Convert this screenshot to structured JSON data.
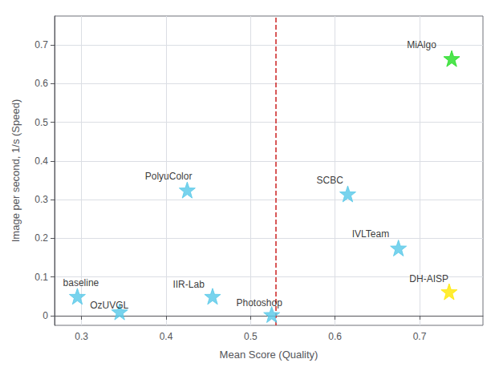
{
  "chart_data": {
    "type": "scatter",
    "xlabel": "Mean Score (Quality)",
    "ylabel": "Image per second, 1/s (Speed)",
    "x": [
      0.295,
      0.345,
      0.425,
      0.455,
      0.525,
      0.615,
      0.675,
      0.735,
      0.738
    ],
    "values": [
      0.05,
      0.01,
      0.325,
      0.05,
      0.003,
      0.315,
      0.175,
      0.062,
      0.665
    ],
    "colors": [
      "#56C8E8",
      "#56C8E8",
      "#56C8E8",
      "#56C8E8",
      "#56C8E8",
      "#56C8E8",
      "#56C8E8",
      "#FFE800",
      "#22DD22"
    ],
    "marker": "star",
    "annotations": [
      {
        "text": "baseline",
        "x": 0.278,
        "y": 0.072
      },
      {
        "text": "OzUVGL",
        "x": 0.31,
        "y": 0.015
      },
      {
        "text": "PolyuColor",
        "x": 0.375,
        "y": 0.348
      },
      {
        "text": "IIR-Lab",
        "x": 0.408,
        "y": 0.068
      },
      {
        "text": "Photoshop",
        "x": 0.483,
        "y": 0.02
      },
      {
        "text": "SCBC",
        "x": 0.578,
        "y": 0.338
      },
      {
        "text": "IVLTeam",
        "x": 0.62,
        "y": 0.198
      },
      {
        "text": "DH-AISP",
        "x": 0.688,
        "y": 0.082
      },
      {
        "text": "MiAlgo",
        "x": 0.685,
        "y": 0.688
      }
    ],
    "vlines": [
      {
        "x": 0.525,
        "color": "#CC2222",
        "line_style": "dashed"
      }
    ],
    "xlim": [
      0.268,
      0.775
    ],
    "ylim": [
      -0.025,
      0.775
    ],
    "xticks": [
      0.3,
      0.4,
      0.5,
      0.6,
      0.7
    ],
    "yticks": [
      0.0,
      0.1,
      0.2,
      0.3,
      0.4,
      0.5,
      0.6,
      0.7
    ],
    "grid": true
  }
}
